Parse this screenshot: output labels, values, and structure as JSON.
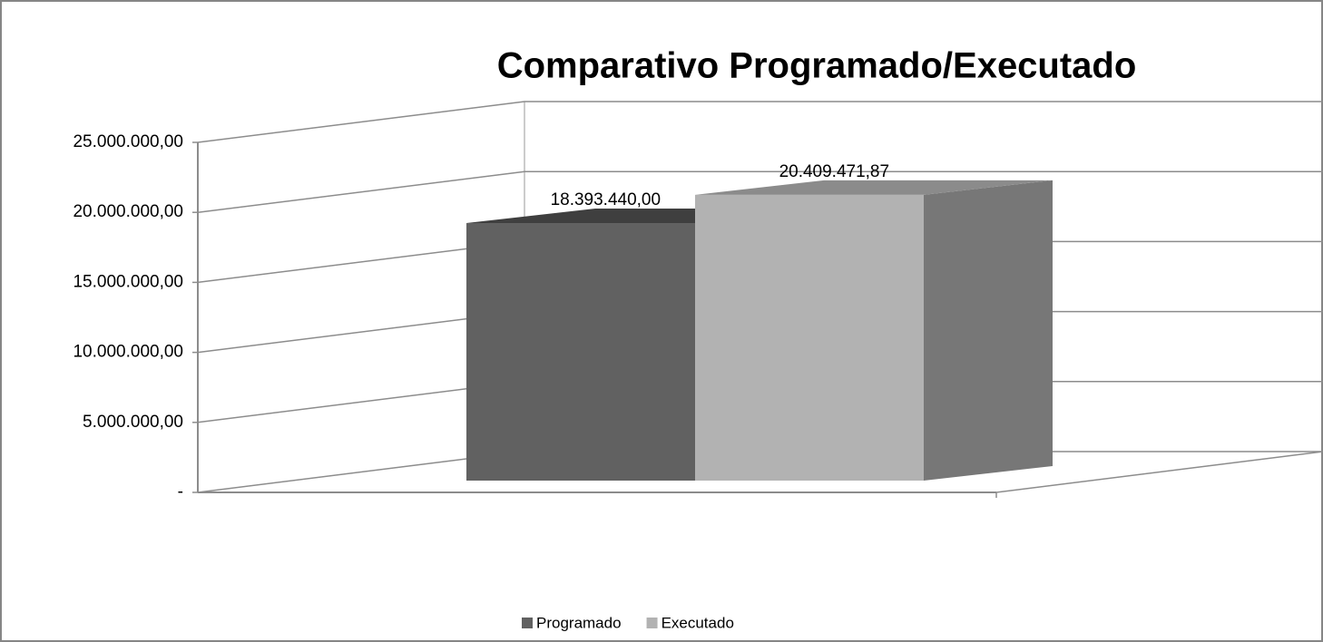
{
  "chart_data": {
    "type": "bar3d",
    "title": "Comparativo Programado/Executado",
    "categories": [
      null
    ],
    "series": [
      {
        "name": "Programado",
        "color": "#616161",
        "values": [
          18393440
        ],
        "value_labels": [
          "18.393.440,00"
        ]
      },
      {
        "name": "Executado",
        "color": "#b2b2b2",
        "values": [
          20409471.87
        ],
        "value_labels": [
          "20.409.471,87"
        ]
      }
    ],
    "ylim": [
      0,
      25000000
    ],
    "yticks": [
      {
        "value": 0,
        "label": "-"
      },
      {
        "value": 5000000,
        "label": "5.000.000,00"
      },
      {
        "value": 10000000,
        "label": "10.000.000,00"
      },
      {
        "value": 15000000,
        "label": "15.000.000,00"
      },
      {
        "value": 20000000,
        "label": "20.000.000,00"
      },
      {
        "value": 25000000,
        "label": "25.000.000,00"
      }
    ],
    "grid": true,
    "legend": "bottom"
  }
}
